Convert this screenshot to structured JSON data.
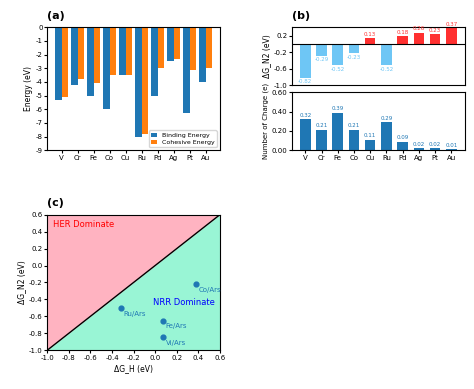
{
  "chart_data": [
    {
      "type": "bar",
      "title": "(a)",
      "categories": [
        "V",
        "Cr",
        "Fe",
        "Co",
        "Cu",
        "Ru",
        "Pd",
        "Ag",
        "Pt",
        "Au"
      ],
      "series": [
        {
          "name": "Binding Energy",
          "values": [
            -5.3,
            -4.2,
            -5.0,
            -6.0,
            -3.5,
            -8.0,
            -5.0,
            -2.5,
            -6.3,
            -4.0
          ]
        },
        {
          "name": "Cohesive Energy",
          "values": [
            -5.1,
            -3.8,
            -4.1,
            -3.5,
            -3.5,
            -7.8,
            -3.0,
            -2.3,
            -3.1,
            -3.0
          ]
        }
      ],
      "y_label": "Energy (eV)",
      "ylim": [
        -9,
        0
      ],
      "yticks": [
        -9,
        -8,
        -7,
        -6,
        -5,
        -4,
        -3,
        -2,
        -1,
        0
      ],
      "legend": "lower right"
    },
    {
      "type": "bar",
      "title": "(b)",
      "categories": [
        "V",
        "Cr",
        "Fe",
        "Co",
        "Cu",
        "Ru",
        "Pd",
        "Ag",
        "Pt",
        "Au"
      ],
      "values": [
        -0.82,
        -0.29,
        -0.52,
        -0.23,
        0.13,
        -0.52,
        0.18,
        0.26,
        0.23,
        0.37
      ],
      "colors": [
        "#6ec6f5",
        "#6ec6f5",
        "#6ec6f5",
        "#6ec6f5",
        "#ff3030",
        "#6ec6f5",
        "#ff3030",
        "#ff3030",
        "#ff3030",
        "#ff3030"
      ],
      "y_label": "ΔG_N2 (eV)",
      "ylim": [
        -1.0,
        0.4
      ],
      "yticks": [
        -1.0,
        -0.6,
        -0.2,
        0.2
      ],
      "data_labels": true,
      "tick_labels": "y"
    },
    {
      "type": "bar",
      "categories": [
        "V",
        "Cr",
        "Fe",
        "Co",
        "Cu",
        "Ru",
        "Pd",
        "Ag",
        "Pt",
        "Au"
      ],
      "values": [
        0.32,
        0.21,
        0.39,
        0.21,
        0.11,
        0.29,
        0.09,
        0.02,
        0.02,
        0.01
      ],
      "y_label": "Number of Charge (e)",
      "ylim": [
        0.0,
        0.6
      ],
      "yticks": [
        {
          "value": 0.0,
          "label": "0.00"
        },
        {
          "value": 0.2,
          "label": "0.20"
        },
        {
          "value": 0.4,
          "label": "0.40"
        },
        {
          "value": 0.6,
          "label": "0.60"
        }
      ],
      "data_labels": true
    },
    {
      "type": "scatter",
      "title": "(c)",
      "x": [
        -0.32,
        0.07,
        0.07,
        0.38
      ],
      "values": [
        -0.5,
        -0.65,
        -0.85,
        -0.22
      ],
      "point_labels": [
        "Ru/Ars",
        "Fe/Ars",
        "Vi/Ars",
        "Co/Ars"
      ],
      "x_label": "ΔG_H (eV)",
      "y_label": "ΔG_N2 (eV)",
      "xlim": [
        -1.0,
        0.6
      ],
      "ylim": [
        -1.0,
        0.6
      ],
      "xticks": [
        -1.0,
        -0.8,
        -0.6,
        -0.4,
        -0.2,
        0.0,
        0.2,
        0.4,
        0.6
      ],
      "yticks": [
        -1.0,
        -0.8,
        -0.6,
        -0.4,
        -0.2,
        0.0,
        0.2,
        0.4,
        0.6
      ],
      "regions": [
        {
          "label": "HER Dominate",
          "color": "#ffb3c1"
        },
        {
          "label": "NRR Dominate",
          "color": "#99f5d5"
        }
      ]
    }
  ]
}
